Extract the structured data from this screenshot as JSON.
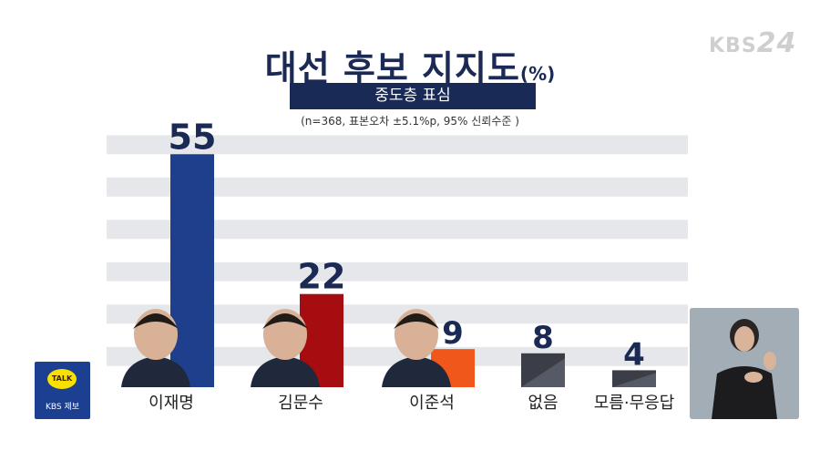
{
  "header": {
    "title": "대선 후보 지지도",
    "title_unit": "(%)",
    "subtitle": "중도층 표심",
    "note": "(n=368,  표본오차 ±5.1%p, 95% 신뢰수준 )",
    "broadcaster_logo_text": "KBS",
    "broadcaster_logo_number": "24"
  },
  "report_widget": {
    "bubble": "TALK",
    "label": "KBS 제보"
  },
  "chart_data": {
    "type": "bar",
    "title": "대선 후보 지지도",
    "subtitle": "중도층 표심",
    "categories": [
      "이재명",
      "김문수",
      "이준석",
      "없음",
      "모름·무응답"
    ],
    "values": [
      55,
      22,
      9,
      8,
      4
    ],
    "colors": [
      "#1e3f8c",
      "#a50d10",
      "#f0571b",
      "#3c3e47",
      "#3c3e47"
    ],
    "ylim": [
      0,
      60
    ],
    "grid": true
  }
}
